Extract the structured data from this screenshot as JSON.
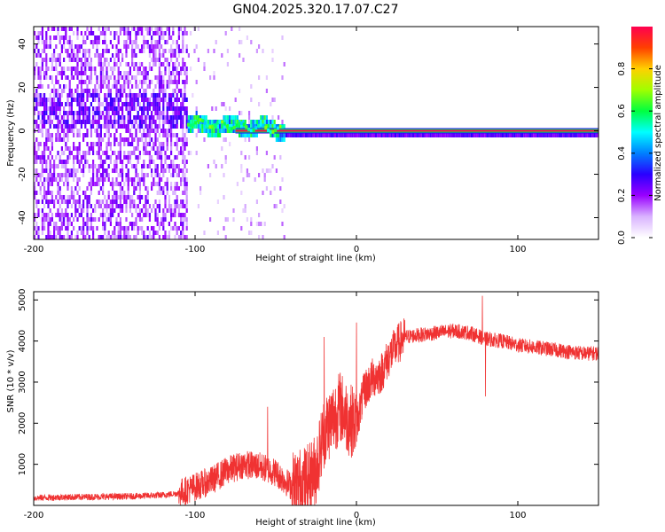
{
  "figure_title": "GN04.2025.320.17.07.C27",
  "chart_data": [
    {
      "type": "heatmap",
      "title": "GN04.2025.320.17.07.C27",
      "xlabel": "Height of straight line (km)",
      "ylabel": "Frequency (Hz)",
      "xlim": [
        -200,
        150
      ],
      "ylim": [
        -50,
        48
      ],
      "x_ticks": [
        -200,
        -100,
        0,
        100
      ],
      "x_tick_labels": [
        "-200",
        "-100",
        "0",
        "100"
      ],
      "y_ticks": [
        -40,
        -20,
        0,
        20,
        40
      ],
      "y_tick_labels": [
        "-40",
        "-20",
        "0",
        "20",
        "40"
      ],
      "colorbar": {
        "label": "Normalized spectral amplitude",
        "range": [
          0,
          1
        ],
        "ticks": [
          0.0,
          0.2,
          0.4,
          0.6,
          0.8
        ],
        "tick_labels": [
          "0.0",
          "0.2",
          "0.4",
          "0.6",
          "0.8"
        ],
        "colors": [
          "#ffffff",
          "#d9b3ff",
          "#9900ff",
          "#2a00ff",
          "#0080ff",
          "#00ffff",
          "#00ff40",
          "#a0ff00",
          "#ffd000",
          "#ff4000",
          "#ff0050"
        ]
      },
      "description_values": {
        "broadband_noise_region_x": [
          -200,
          -105
        ],
        "scattered_noise_region_x": [
          -105,
          -45
        ],
        "carrier_frequency_hz": 0,
        "carrier_onset_x": -105
      }
    },
    {
      "type": "line",
      "xlabel": "Height of straight line (km)",
      "ylabel": "SNR (10 * v/v)",
      "xlim": [
        -200,
        150
      ],
      "ylim": [
        0,
        5200
      ],
      "x_ticks": [
        -200,
        -100,
        0,
        100
      ],
      "x_tick_labels": [
        "-200",
        "-100",
        "0",
        "100"
      ],
      "y_ticks": [
        1000,
        2000,
        3000,
        4000,
        5000
      ],
      "y_tick_labels": [
        "1000",
        "2000",
        "3000",
        "4000",
        "5000"
      ],
      "series": [
        {
          "name": "SNR",
          "color": "#f03232",
          "x": [
            -200,
            -180,
            -160,
            -140,
            -120,
            -110,
            -100,
            -90,
            -80,
            -70,
            -60,
            -50,
            -40,
            -30,
            -25,
            -20,
            -15,
            -10,
            -5,
            0,
            5,
            10,
            15,
            20,
            25,
            30,
            40,
            50,
            60,
            70,
            80,
            90,
            100,
            110,
            120,
            130,
            140,
            150
          ],
          "values": [
            180,
            200,
            210,
            220,
            250,
            300,
            450,
            600,
            850,
            1000,
            950,
            800,
            450,
            600,
            900,
            1800,
            2100,
            2400,
            2100,
            2000,
            2800,
            3100,
            3200,
            3600,
            3900,
            4100,
            4150,
            4200,
            4250,
            4200,
            4050,
            4000,
            3900,
            3850,
            3800,
            3750,
            3700,
            3700
          ]
        }
      ],
      "notable_points": [
        {
          "x": -55,
          "y": 2400
        },
        {
          "x": -20,
          "y": 4100
        },
        {
          "x": 0,
          "y": 4450
        },
        {
          "x": 78,
          "y": 5100
        },
        {
          "x": 80,
          "y": 2650
        }
      ]
    }
  ]
}
